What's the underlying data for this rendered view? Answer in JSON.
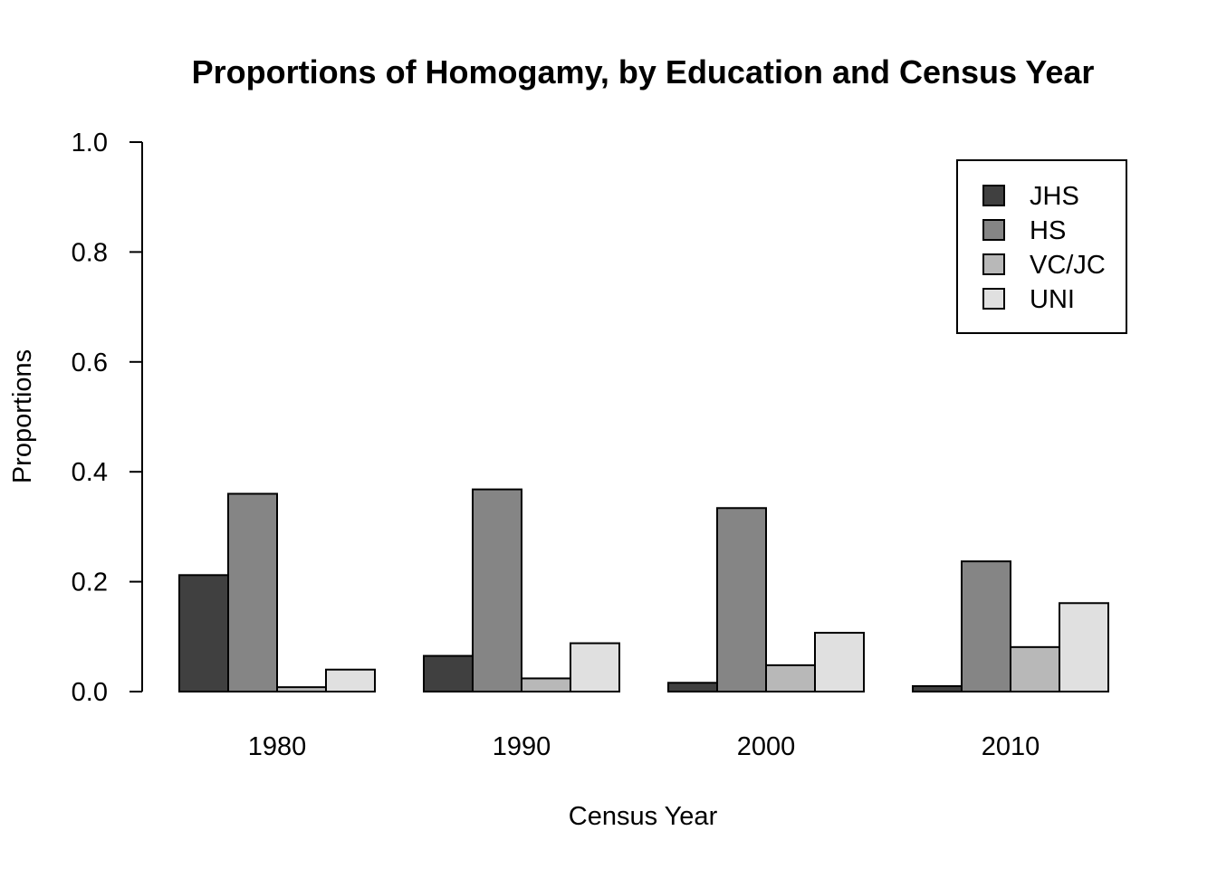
{
  "chart_data": {
    "type": "bar",
    "title": "Proportions of Homogamy, by Education and Census Year",
    "xlabel": "Census Year",
    "ylabel": "Proportions",
    "ylim": [
      0,
      1.0
    ],
    "yticks": [
      "0.0",
      "0.2",
      "0.4",
      "0.6",
      "0.8",
      "1.0"
    ],
    "categories": [
      "1980",
      "1990",
      "2000",
      "2010"
    ],
    "series": [
      {
        "name": "JHS",
        "color": "#404040",
        "values": [
          0.212,
          0.065,
          0.016,
          0.01
        ]
      },
      {
        "name": "HS",
        "color": "#858585",
        "values": [
          0.36,
          0.368,
          0.334,
          0.237
        ]
      },
      {
        "name": "VC/JC",
        "color": "#b8b8b8",
        "values": [
          0.008,
          0.024,
          0.048,
          0.081
        ]
      },
      {
        "name": "UNI",
        "color": "#e0e0e0",
        "values": [
          0.04,
          0.088,
          0.107,
          0.161
        ]
      }
    ],
    "grid": false,
    "legend_position": "top-right"
  }
}
